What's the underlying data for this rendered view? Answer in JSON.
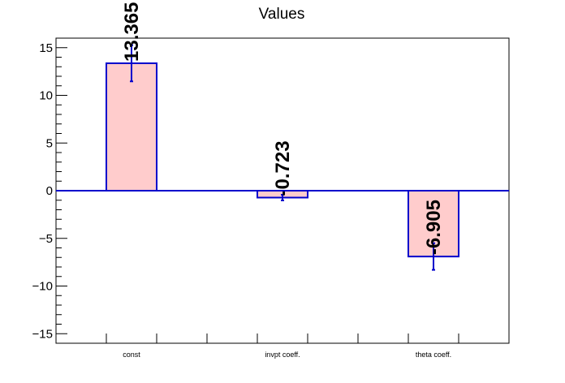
{
  "chart_data": {
    "type": "bar",
    "title": "Values",
    "categories": [
      "const",
      "invpt coeff.",
      "theta coeff."
    ],
    "values": [
      13.365,
      -0.723,
      -6.905
    ],
    "value_labels": [
      "13.365",
      "-0.723",
      "-6.905"
    ],
    "errors": [
      1.9,
      0.3,
      1.4
    ],
    "ylim": [
      -16,
      16
    ],
    "yticks": [
      -15,
      -10,
      -5,
      0,
      5,
      10,
      15
    ],
    "ytick_labels": [
      "−15",
      "−10",
      "−5",
      "0",
      "5",
      "10",
      "15"
    ],
    "xlabel": "",
    "ylabel": "",
    "grid": false,
    "colors": {
      "bar_fill": "#ffcccc",
      "bar_edge": "#0000cc",
      "error": "#0000cc",
      "zero_line": "#0000cc"
    }
  }
}
